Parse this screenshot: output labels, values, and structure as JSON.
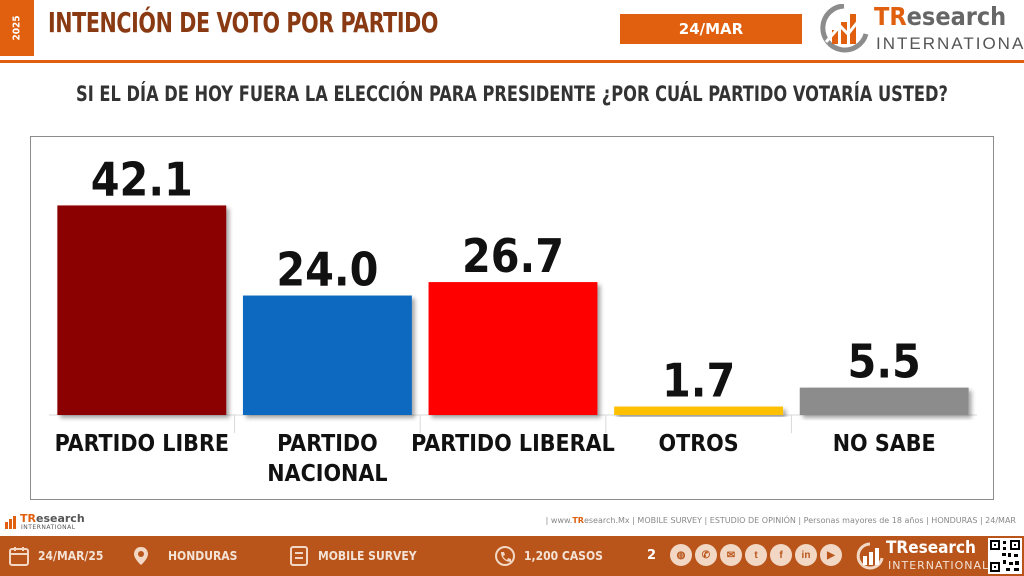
{
  "header": {
    "year": "2025",
    "title": "INTENCIÓN DE VOTO POR PARTIDO",
    "date": "24/MAR",
    "brand_main": "TR",
    "brand_rest": "esearch",
    "brand_sub": "INTERNATIONAL"
  },
  "question": "SI EL DÍA DE HOY FUERA LA ELECCIÓN PARA PRESIDENTE ¿POR CUÁL PARTIDO VOTARÍA USTED?",
  "chart_data": {
    "type": "bar",
    "title": "",
    "xlabel": "",
    "ylabel": "",
    "ylim": [
      0,
      45
    ],
    "grid": false,
    "categories": [
      [
        "PARTIDO LIBRE"
      ],
      [
        "PARTIDO",
        "NACIONAL"
      ],
      [
        "PARTIDO LIBERAL"
      ],
      [
        "OTROS"
      ],
      [
        "NO SABE"
      ]
    ],
    "values": [
      42.1,
      24.0,
      26.7,
      1.7,
      5.5
    ],
    "value_labels": [
      "42.1",
      "24.0",
      "26.7",
      "1.7",
      "5.5"
    ],
    "colors": [
      "#8b0000",
      "#1068c0",
      "#ff0000",
      "#ffc000",
      "#8c8c8c"
    ]
  },
  "footer": {
    "brand_main": "TR",
    "brand_rest": "esearch",
    "brand_sub": "INTERNATIONAL",
    "note_prefix": "| www.",
    "note_brand": "TR",
    "note_suffix": "esearch.Mx | MOBILE SURVEY | ESTUDIO DE OPINIÓN | Personas mayores de 18 años | HONDURAS | 24/MAR",
    "date": "24/MAR/25",
    "country": "HONDURAS",
    "method": "MOBILE SURVEY",
    "cases": "1,200 CASOS",
    "page": "2",
    "socials": [
      "www-icon",
      "phone-icon",
      "mail-icon",
      "twitter-icon",
      "facebook-icon",
      "linkedin-icon",
      "youtube-icon"
    ]
  }
}
